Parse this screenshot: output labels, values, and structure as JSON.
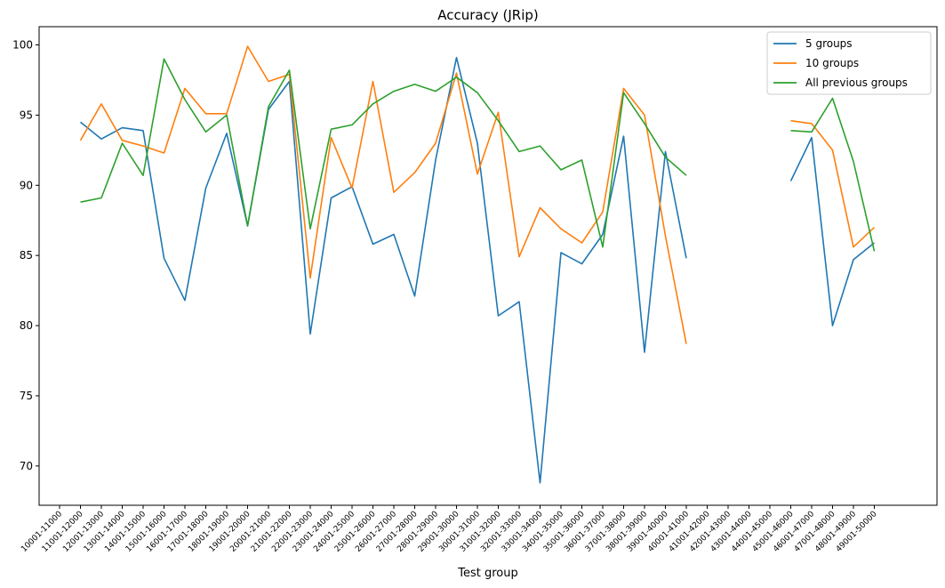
{
  "chart_data": {
    "type": "line",
    "title": "Accuracy (JRip)",
    "xlabel": "Test group",
    "ylabel": "",
    "ylim": [
      67.2,
      101.3
    ],
    "yticks": [
      70,
      75,
      80,
      85,
      90,
      95,
      100
    ],
    "grid": false,
    "legend_position": "top-right",
    "categories": [
      "10001-11000",
      "11001-12000",
      "12001-13000",
      "13001-14000",
      "14001-15000",
      "15001-16000",
      "16001-17000",
      "17001-18000",
      "18001-19000",
      "19001-20000",
      "20001-21000",
      "21001-22000",
      "22001-23000",
      "23001-24000",
      "24001-25000",
      "25001-26000",
      "26001-27000",
      "27001-28000",
      "28001-29000",
      "29001-30000",
      "30001-31000",
      "31001-32000",
      "32001-33000",
      "33001-34000",
      "34001-35000",
      "35001-36000",
      "36001-37000",
      "37001-38000",
      "38001-39000",
      "39001-40000",
      "40001-41000",
      "41001-42000",
      "42001-43000",
      "43001-44000",
      "44001-45000",
      "45001-46000",
      "46001-47000",
      "47001-48000",
      "48001-49000",
      "49001-50000"
    ],
    "series": [
      {
        "name": "5 groups",
        "color": "#1f77b4",
        "values": [
          null,
          94.5,
          93.3,
          94.1,
          93.9,
          84.8,
          81.8,
          89.8,
          93.7,
          87.1,
          95.4,
          97.4,
          79.4,
          89.1,
          89.9,
          85.8,
          86.5,
          82.1,
          91.8,
          99.1,
          93.0,
          80.7,
          81.7,
          68.8,
          85.2,
          84.4,
          86.5,
          93.5,
          78.1,
          92.4,
          84.8,
          null,
          null,
          null,
          null,
          90.3,
          93.4,
          80.0,
          84.7,
          85.9
        ]
      },
      {
        "name": "10 groups",
        "color": "#ff7f0e",
        "values": [
          null,
          93.2,
          95.8,
          93.2,
          92.8,
          92.3,
          96.9,
          95.1,
          95.1,
          99.9,
          97.4,
          97.9,
          83.4,
          93.4,
          89.8,
          97.4,
          89.5,
          90.9,
          93.0,
          98.0,
          90.8,
          95.2,
          84.9,
          88.4,
          86.9,
          85.9,
          88.1,
          96.9,
          95.0,
          86.4,
          78.7,
          null,
          null,
          null,
          null,
          94.6,
          94.4,
          92.5,
          85.6,
          87.0
        ]
      },
      {
        "name": "All previous groups",
        "color": "#2ca02c",
        "values": [
          null,
          88.8,
          89.1,
          93.0,
          90.7,
          99.0,
          96.1,
          93.8,
          95.0,
          87.1,
          95.6,
          98.2,
          86.9,
          94.0,
          94.3,
          95.8,
          96.7,
          97.2,
          96.7,
          97.7,
          96.6,
          94.6,
          92.4,
          92.8,
          91.1,
          91.8,
          85.6,
          96.6,
          94.4,
          92.0,
          90.7,
          null,
          null,
          null,
          null,
          93.9,
          93.8,
          96.2,
          91.7,
          85.3
        ]
      }
    ]
  }
}
